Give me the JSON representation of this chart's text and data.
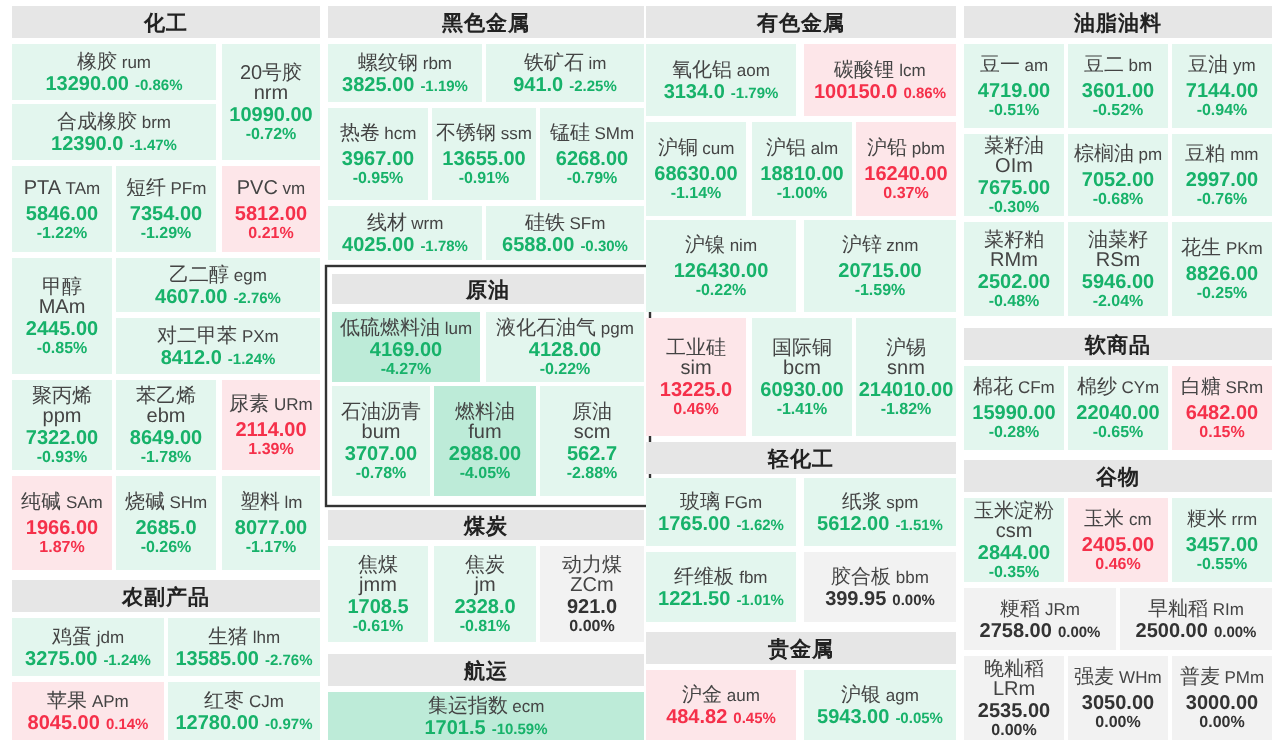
{
  "chart_data": [
    {
      "type": "other",
      "title": "化工",
      "categories": [
        "橡胶 rum",
        "合成橡胶 brm",
        "20号胶 nrm",
        "PTA TAm",
        "短纤 PFm",
        "PVC vm",
        "甲醇 MAm",
        "乙二醇 egm",
        "对二甲苯 PXm",
        "聚丙烯 ppm",
        "苯乙烯 ebm",
        "尿素 URm",
        "纯碱 SAm",
        "烧碱 SHm",
        "塑料 lm"
      ],
      "series": [
        {
          "colors": [
            "#e3f6ee",
            "#e3f6ee",
            "#e3f6ee",
            "#e3f6ee",
            "#e3f6ee",
            "#fde6e9",
            "#e3f6ee",
            "#e3f6ee",
            "#e3f6ee",
            "#e3f6ee",
            "#e3f6ee",
            "#fde6e9",
            "#fde6e9",
            "#e3f6ee",
            "#e3f6ee"
          ],
          "values": [
            13290.0,
            12390.0,
            10990.0,
            5846.0,
            7354.0,
            5812.0,
            2445.0,
            4607.0,
            8412.0,
            7322.0,
            8649.0,
            2114.0,
            1966.0,
            2685.0,
            8077.0
          ],
          "value_labels": [
            "13290.00",
            "12390.0",
            "10990.00",
            "5846.00",
            "7354.00",
            "5812.00",
            "2445.00",
            "4607.00",
            "8412.0",
            "7322.00",
            "8649.00",
            "2114.00",
            "1966.00",
            "2685.0",
            "8077.00"
          ]
        },
        {
          "values": [
            -0.86,
            -1.47,
            -0.72,
            -1.22,
            -1.29,
            0.21,
            -0.85,
            -2.76,
            -1.24,
            -0.93,
            -1.78,
            1.39,
            1.87,
            -0.26,
            -1.17
          ],
          "value_labels": [
            "-0.86%",
            "-1.47%",
            "-0.72%",
            "-1.22%",
            "-1.29%",
            "0.21%",
            "-0.85%",
            "-2.76%",
            "-1.24%",
            "-0.93%",
            "-1.78%",
            "1.39%",
            "1.87%",
            "-0.26%",
            "-1.17%"
          ]
        }
      ]
    },
    {
      "type": "other",
      "title": "农副产品",
      "categories": [
        "鸡蛋 jdm",
        "生猪 lhm",
        "苹果 APm",
        "红枣 CJm"
      ],
      "series": [
        {
          "colors": [
            "#e3f6ee",
            "#e3f6ee",
            "#fde6e9",
            "#e3f6ee"
          ],
          "values": [
            3275.0,
            13585.0,
            8045.0,
            12780.0
          ],
          "value_labels": [
            "3275.00",
            "13585.00",
            "8045.00",
            "12780.00"
          ]
        },
        {
          "values": [
            -1.24,
            -2.76,
            0.14,
            -0.97
          ],
          "value_labels": [
            "-1.24%",
            "-2.76%",
            "0.14%",
            "-0.97%"
          ]
        }
      ]
    },
    {
      "type": "other",
      "title": "黑色金属",
      "categories": [
        "螺纹钢 rbm",
        "铁矿石 im",
        "热卷 hcm",
        "不锈钢 ssm",
        "锰硅 SMm",
        "线材 wrm",
        "硅铁 SFm"
      ],
      "series": [
        {
          "colors": [
            "#e3f6ee",
            "#e3f6ee",
            "#e3f6ee",
            "#e3f6ee",
            "#e3f6ee",
            "#e3f6ee",
            "#e3f6ee"
          ],
          "values": [
            3825.0,
            941.0,
            3967.0,
            13655.0,
            6268.0,
            4025.0,
            6588.0
          ],
          "value_labels": [
            "3825.00",
            "941.0",
            "3967.00",
            "13655.00",
            "6268.00",
            "4025.00",
            "6588.00"
          ]
        },
        {
          "values": [
            -1.19,
            -2.25,
            -0.95,
            -0.91,
            -0.79,
            -1.78,
            -0.3
          ],
          "value_labels": [
            "-1.19%",
            "-2.25%",
            "-0.95%",
            "-0.91%",
            "-0.79%",
            "-1.78%",
            "-0.30%"
          ]
        }
      ]
    },
    {
      "type": "other",
      "title": "原油",
      "categories": [
        "低硫燃料油 lum",
        "液化石油气 pgm",
        "石油沥青 bum",
        "燃料油 fum",
        "原油 scm"
      ],
      "series": [
        {
          "colors": [
            "#bdebd8",
            "#e3f6ee",
            "#e3f6ee",
            "#bdebd8",
            "#e3f6ee"
          ],
          "values": [
            4169.0,
            4128.0,
            3707.0,
            2988.0,
            562.7
          ],
          "value_labels": [
            "4169.00",
            "4128.00",
            "3707.00",
            "2988.00",
            "562.7"
          ]
        },
        {
          "values": [
            -4.27,
            -0.22,
            -0.78,
            -4.05,
            -2.88
          ],
          "value_labels": [
            "-4.27%",
            "-0.22%",
            "-0.78%",
            "-4.05%",
            "-2.88%"
          ]
        }
      ]
    },
    {
      "type": "other",
      "title": "煤炭",
      "categories": [
        "焦煤 jmm",
        "焦炭 jm",
        "动力煤 ZCm"
      ],
      "series": [
        {
          "colors": [
            "#e3f6ee",
            "#e3f6ee",
            "#f2f2f2"
          ],
          "values": [
            1708.5,
            2328.0,
            921.0
          ],
          "value_labels": [
            "1708.5",
            "2328.0",
            "921.0"
          ]
        },
        {
          "values": [
            -0.61,
            -0.81,
            0.0
          ],
          "value_labels": [
            "-0.61%",
            "-0.81%",
            "0.00%"
          ]
        }
      ]
    },
    {
      "type": "other",
      "title": "航运",
      "categories": [
        "集运指数 ecm"
      ],
      "series": [
        {
          "colors": [
            "#bdebd8"
          ],
          "values": [
            1701.5
          ],
          "value_labels": [
            "1701.5"
          ]
        },
        {
          "values": [
            -10.59
          ],
          "value_labels": [
            "-10.59%"
          ]
        }
      ]
    },
    {
      "type": "other",
      "title": "有色金属",
      "categories": [
        "氧化铝 aom",
        "碳酸锂 lcm",
        "沪铜 cum",
        "沪铝 alm",
        "沪铅 pbm",
        "沪镍 nim",
        "沪锌 znm",
        "工业硅 sim",
        "国际铜 bcm",
        "沪锡 snm"
      ],
      "series": [
        {
          "colors": [
            "#e3f6ee",
            "#fde6e9",
            "#e3f6ee",
            "#e3f6ee",
            "#fde6e9",
            "#e3f6ee",
            "#e3f6ee",
            "#fde6e9",
            "#e3f6ee",
            "#e3f6ee"
          ],
          "values": [
            3134.0,
            100150.0,
            68630.0,
            18810.0,
            16240.0,
            126430.0,
            20715.0,
            13225.0,
            60930.0,
            214010.0
          ],
          "value_labels": [
            "3134.0",
            "100150.0",
            "68630.00",
            "18810.00",
            "16240.00",
            "126430.00",
            "20715.00",
            "13225.0",
            "60930.00",
            "214010.00"
          ]
        },
        {
          "values": [
            -1.79,
            0.86,
            -1.14,
            -1.0,
            0.37,
            -0.22,
            -1.59,
            0.46,
            -1.41,
            -1.82
          ],
          "value_labels": [
            "-1.79%",
            "0.86%",
            "-1.14%",
            "-1.00%",
            "0.37%",
            "-0.22%",
            "-1.59%",
            "0.46%",
            "-1.41%",
            "-1.82%"
          ]
        }
      ]
    },
    {
      "type": "other",
      "title": "轻化工",
      "categories": [
        "玻璃 FGm",
        "纸浆 spm",
        "纤维板 fbm",
        "胶合板 bbm"
      ],
      "series": [
        {
          "colors": [
            "#e3f6ee",
            "#e3f6ee",
            "#e3f6ee",
            "#f2f2f2"
          ],
          "values": [
            1765.0,
            5612.0,
            1221.5,
            399.95
          ],
          "value_labels": [
            "1765.00",
            "5612.00",
            "1221.50",
            "399.95"
          ]
        },
        {
          "values": [
            -1.62,
            -1.51,
            -1.01,
            0.0
          ],
          "value_labels": [
            "-1.62%",
            "-1.51%",
            "-1.01%",
            "0.00%"
          ]
        }
      ]
    },
    {
      "type": "other",
      "title": "贵金属",
      "categories": [
        "沪金 aum",
        "沪银 agm"
      ],
      "series": [
        {
          "colors": [
            "#fde6e9",
            "#e3f6ee"
          ],
          "values": [
            484.82,
            5943.0
          ],
          "value_labels": [
            "484.82",
            "5943.00"
          ]
        },
        {
          "values": [
            0.45,
            -0.05
          ],
          "value_labels": [
            "0.45%",
            "-0.05%"
          ]
        }
      ]
    },
    {
      "type": "other",
      "title": "油脂油料",
      "categories": [
        "豆一 am",
        "豆二 bm",
        "豆油 ym",
        "菜籽油 OIm",
        "棕榈油 pm",
        "豆粕 mm",
        "菜籽粕 RMm",
        "油菜籽 RSm",
        "花生 PKm"
      ],
      "series": [
        {
          "colors": [
            "#e3f6ee",
            "#e3f6ee",
            "#e3f6ee",
            "#e3f6ee",
            "#e3f6ee",
            "#e3f6ee",
            "#e3f6ee",
            "#e3f6ee",
            "#e3f6ee"
          ],
          "values": [
            4719.0,
            3601.0,
            7144.0,
            7675.0,
            7052.0,
            2997.0,
            2502.0,
            5946.0,
            8826.0
          ],
          "value_labels": [
            "4719.00",
            "3601.00",
            "7144.00",
            "7675.00",
            "7052.00",
            "2997.00",
            "2502.00",
            "5946.00",
            "8826.00"
          ]
        },
        {
          "values": [
            -0.51,
            -0.52,
            -0.94,
            -0.3,
            -0.68,
            -0.76,
            -0.48,
            -2.04,
            -0.25
          ],
          "value_labels": [
            "-0.51%",
            "-0.52%",
            "-0.94%",
            "-0.30%",
            "-0.68%",
            "-0.76%",
            "-0.48%",
            "-2.04%",
            "-0.25%"
          ]
        }
      ]
    },
    {
      "type": "other",
      "title": "软商品",
      "categories": [
        "棉花 CFm",
        "棉纱 CYm",
        "白糖 SRm"
      ],
      "series": [
        {
          "colors": [
            "#e3f6ee",
            "#e3f6ee",
            "#fde6e9"
          ],
          "values": [
            15990.0,
            22040.0,
            6482.0
          ],
          "value_labels": [
            "15990.00",
            "22040.00",
            "6482.00"
          ]
        },
        {
          "values": [
            -0.28,
            -0.65,
            0.15
          ],
          "value_labels": [
            "-0.28%",
            "-0.65%",
            "0.15%"
          ]
        }
      ]
    },
    {
      "type": "other",
      "title": "谷物",
      "categories": [
        "玉米淀粉 csm",
        "玉米 cm",
        "粳米 rrm",
        "粳稻 JRm",
        "早籼稻 RIm",
        "晚籼稻 LRm",
        "强麦 WHm",
        "普麦 PMm"
      ],
      "series": [
        {
          "colors": [
            "#e3f6ee",
            "#fde6e9",
            "#e3f6ee",
            "#f2f2f2",
            "#f2f2f2",
            "#f2f2f2",
            "#f2f2f2",
            "#f2f2f2"
          ],
          "values": [
            2844.0,
            2405.0,
            3457.0,
            2758.0,
            2500.0,
            2535.0,
            3050.0,
            3000.0
          ],
          "value_labels": [
            "2844.00",
            "2405.00",
            "3457.00",
            "2758.00",
            "2500.00",
            "2535.00",
            "3050.00",
            "3000.00"
          ]
        },
        {
          "values": [
            -0.35,
            0.46,
            -0.55,
            0.0,
            0.0,
            0.0,
            0.0,
            0.0
          ],
          "value_labels": [
            "-0.35%",
            "0.46%",
            "-0.55%",
            "0.00%",
            "0.00%",
            "0.00%",
            "0.00%",
            "0.00%"
          ]
        }
      ]
    }
  ]
}
